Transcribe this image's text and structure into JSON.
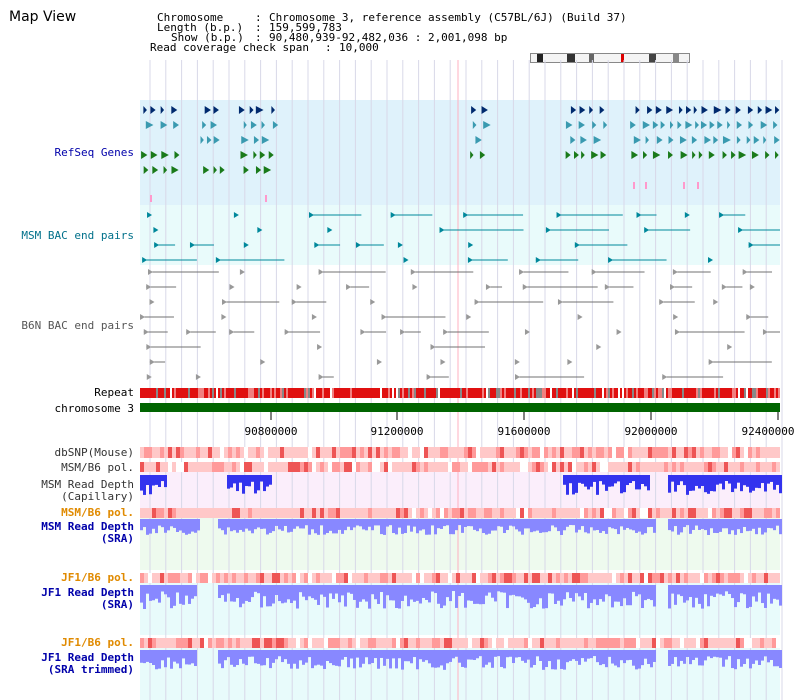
{
  "title": "Map View",
  "info": {
    "chromosome_key": "Chromosome",
    "chromosome_val": "Chromosome 3, reference assembly (C57BL/6J) (Build 37)",
    "length_key": "Length (b.p.)",
    "length_val": "159,599,783",
    "show_key": "Show (b.p.)",
    "show_val": "90,480,939-92,482,036 : 2,001,098 bp",
    "coverage_key": "Read coverage check span",
    "coverage_val": "10,000"
  },
  "tracks": {
    "refseq": "RefSeq Genes",
    "msm_bac": "MSM BAC end pairs",
    "b6n_bac": "B6N BAC end pairs",
    "repeat": "Repeat",
    "chromosome": "chromosome 3",
    "dbsnp": "dbSNP(Mouse)",
    "msm_pol1": "MSM/B6 pol.",
    "msm_depth_cap_1": "MSM Read Depth",
    "msm_depth_cap_2": "(Capillary)",
    "msm_pol2": "MSM/B6 pol.",
    "msm_depth_sra_1": "MSM Read Depth",
    "msm_depth_sra_2": "(SRA)",
    "jf1_pol1": "JF1/B6 pol.",
    "jf1_depth_sra_1": "JF1 Read Depth",
    "jf1_depth_sra_2": "(SRA)",
    "jf1_pol2": "JF1/B6 pol.",
    "jf1_depth_trim_1": "JF1 Read Depth",
    "jf1_depth_trim_2": "(SRA trimmed)"
  },
  "axis": {
    "ticks": [
      "90800000",
      "91200000",
      "91600000",
      "92000000",
      "92400000"
    ]
  },
  "colors": {
    "refseq_dark": "#002a6e",
    "refseq_teal": "#3a9ab0",
    "refseq_green": "#1a7a1a",
    "refseq_pink": "#ff99cc",
    "bac_teal": "#00889b",
    "bac_gray": "#707070",
    "repeat_red": "#e01010",
    "chrom_green": "#006400",
    "label_blue": "#0000aa",
    "label_teal": "#00708a",
    "label_orange": "#e08a00",
    "depth_blue": "#3333ee",
    "depth_light": "#8888ff"
  }
}
